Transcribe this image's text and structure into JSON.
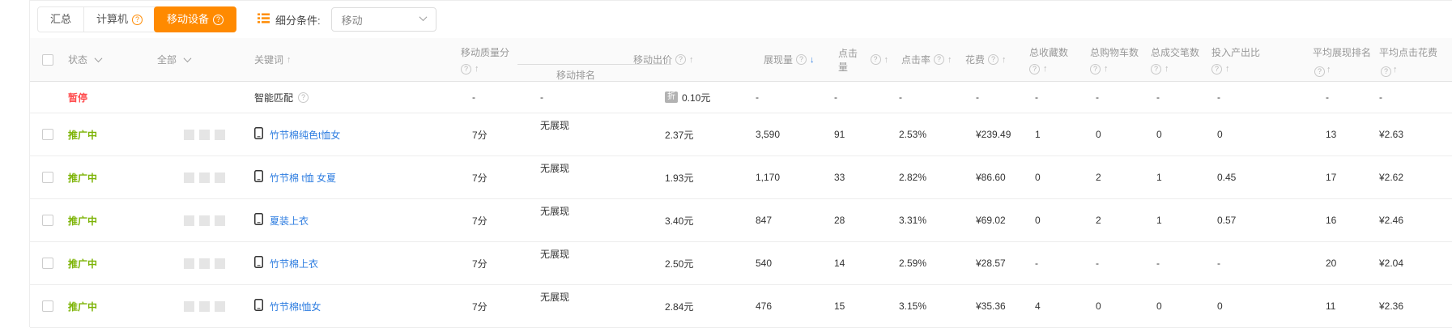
{
  "colors": {
    "accent_orange": "#ff8a00",
    "paused_red": "#ff4d4f",
    "active_green": "#7cb305",
    "link_blue": "#2e7de0",
    "sort_active_blue": "#2e7de0"
  },
  "toolbar": {
    "tabs": [
      {
        "id": "summary",
        "label": "汇总",
        "active": false,
        "help": false
      },
      {
        "id": "computer",
        "label": "计算机",
        "active": false,
        "help": true
      },
      {
        "id": "mobile",
        "label": "移动设备",
        "active": true,
        "help": true
      }
    ],
    "filter_label": "细分条件:",
    "filter_value": "移动"
  },
  "table": {
    "columns": [
      {
        "id": "checkbox",
        "type": "checkbox"
      },
      {
        "id": "status",
        "label": "状态",
        "chevron": true
      },
      {
        "id": "all",
        "label": "全部",
        "chevron": true
      },
      {
        "id": "keyword",
        "label": "关键词",
        "sort": "up"
      },
      {
        "id": "quality",
        "label": "移动质量分",
        "help": true,
        "sort": "up",
        "twoline": true
      },
      {
        "id": "rank",
        "label": "移动排名",
        "grouped": true
      },
      {
        "id": "bid",
        "label": "移动出价",
        "help": true,
        "sort": "up"
      },
      {
        "id": "impressions",
        "label": "展现量",
        "help": true,
        "sort": "down",
        "sort_active": true
      },
      {
        "id": "clicks",
        "label": "点击量",
        "help": true,
        "sort": "up"
      },
      {
        "id": "ctr",
        "label": "点击率",
        "help": true,
        "sort": "up"
      },
      {
        "id": "cost",
        "label": "花费",
        "help": true,
        "sort": "up"
      },
      {
        "id": "favorites",
        "label": "总收藏数",
        "help": true,
        "sort": "up",
        "twoline": true
      },
      {
        "id": "carts",
        "label": "总购物车数",
        "help": true,
        "sort": "up",
        "twoline": true
      },
      {
        "id": "orders",
        "label": "总成交笔数",
        "help": true,
        "sort": "up",
        "twoline": true
      },
      {
        "id": "roi",
        "label": "投入产出比",
        "help": true,
        "sort": "up",
        "twoline": true
      },
      {
        "id": "avg_rank",
        "label": "平均展现排名",
        "help": true,
        "sort": "up",
        "wrap": true
      },
      {
        "id": "avg_cpc",
        "label": "平均点击花费",
        "help": true,
        "sort": "up",
        "wrap": true
      }
    ],
    "rows": [
      {
        "status": "暂停",
        "status_type": "paused",
        "checkbox": false,
        "bars": false,
        "keyword": "智能匹配",
        "keyword_type": "plain",
        "keyword_help": true,
        "phone_icon": false,
        "quality": "-",
        "rank": "-",
        "bid": "0.10元",
        "bid_badge": "折",
        "impressions": "-",
        "clicks": "-",
        "ctr": "-",
        "cost": "-",
        "favorites": "-",
        "carts": "-",
        "orders": "-",
        "roi": "-",
        "avg_rank": "-",
        "avg_cpc": "-"
      },
      {
        "status": "推广中",
        "status_type": "active",
        "checkbox": true,
        "bars": true,
        "keyword": "竹节棉纯色t恤女",
        "keyword_type": "link",
        "keyword_help": false,
        "phone_icon": true,
        "quality": "7分",
        "rank": "无展现",
        "bid": "2.37元",
        "bid_badge": null,
        "impressions": "3,590",
        "clicks": "91",
        "ctr": "2.53%",
        "cost": "¥239.49",
        "favorites": "1",
        "carts": "0",
        "orders": "0",
        "roi": "0",
        "avg_rank": "13",
        "avg_cpc": "¥2.63"
      },
      {
        "status": "推广中",
        "status_type": "active",
        "checkbox": true,
        "bars": true,
        "keyword": "竹节棉 t恤 女夏",
        "keyword_type": "link",
        "keyword_help": false,
        "phone_icon": true,
        "quality": "7分",
        "rank": "无展现",
        "bid": "1.93元",
        "bid_badge": null,
        "impressions": "1,170",
        "clicks": "33",
        "ctr": "2.82%",
        "cost": "¥86.60",
        "favorites": "0",
        "carts": "2",
        "orders": "1",
        "roi": "0.45",
        "avg_rank": "17",
        "avg_cpc": "¥2.62"
      },
      {
        "status": "推广中",
        "status_type": "active",
        "checkbox": true,
        "bars": true,
        "keyword": "夏装上衣",
        "keyword_type": "link",
        "keyword_help": false,
        "phone_icon": true,
        "quality": "7分",
        "rank": "无展现",
        "bid": "3.40元",
        "bid_badge": null,
        "impressions": "847",
        "clicks": "28",
        "ctr": "3.31%",
        "cost": "¥69.02",
        "favorites": "0",
        "carts": "2",
        "orders": "1",
        "roi": "0.57",
        "avg_rank": "16",
        "avg_cpc": "¥2.46"
      },
      {
        "status": "推广中",
        "status_type": "active",
        "checkbox": true,
        "bars": true,
        "keyword": "竹节棉上衣",
        "keyword_type": "link",
        "keyword_help": false,
        "phone_icon": true,
        "quality": "7分",
        "rank": "无展现",
        "bid": "2.50元",
        "bid_badge": null,
        "impressions": "540",
        "clicks": "14",
        "ctr": "2.59%",
        "cost": "¥28.57",
        "favorites": "-",
        "carts": "-",
        "orders": "-",
        "roi": "-",
        "avg_rank": "20",
        "avg_cpc": "¥2.04"
      },
      {
        "status": "推广中",
        "status_type": "active",
        "checkbox": true,
        "bars": true,
        "keyword": "竹节棉t恤女",
        "keyword_type": "link",
        "keyword_help": false,
        "phone_icon": true,
        "quality": "7分",
        "rank": "无展现",
        "bid": "2.84元",
        "bid_badge": null,
        "impressions": "476",
        "clicks": "15",
        "ctr": "3.15%",
        "cost": "¥35.36",
        "favorites": "4",
        "carts": "0",
        "orders": "0",
        "roi": "0",
        "avg_rank": "11",
        "avg_cpc": "¥2.36"
      }
    ]
  }
}
